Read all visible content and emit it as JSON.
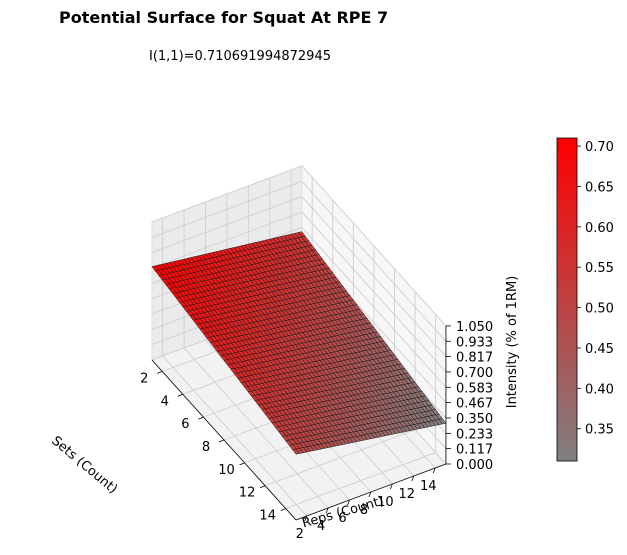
{
  "chart_data": {
    "type": "surface3d",
    "title": "Potential Surface for Squat At RPE 7",
    "subtitle": "I(1,1)=0.710691994872945",
    "xlabel": "Sets (Count)",
    "ylabel": "Reps (Count)",
    "zlabel": "Intensity (% of 1RM)",
    "x_ticks": [
      "2",
      "4",
      "6",
      "8",
      "10",
      "12",
      "14"
    ],
    "y_ticks": [
      "2",
      "4",
      "6",
      "8",
      "10",
      "12",
      "14"
    ],
    "z_ticks": [
      "0.000",
      "0.117",
      "0.233",
      "0.350",
      "0.467",
      "0.583",
      "0.700",
      "0.817",
      "0.933",
      "1.050"
    ],
    "xlim": [
      1,
      15
    ],
    "ylim": [
      1,
      15
    ],
    "zlim": [
      0,
      1.05
    ],
    "corner_values": {
      "sets1_reps1": 0.71,
      "sets1_reps15": 0.55,
      "sets15_reps1": 0.5,
      "sets15_reps15": 0.31
    },
    "colorbar": {
      "ticks": [
        "0.35",
        "0.40",
        "0.45",
        "0.50",
        "0.55",
        "0.60",
        "0.65",
        "0.70"
      ],
      "min": 0.31,
      "max": 0.71,
      "color_low": "#808080",
      "color_high": "#ff0000"
    },
    "grid": true
  }
}
